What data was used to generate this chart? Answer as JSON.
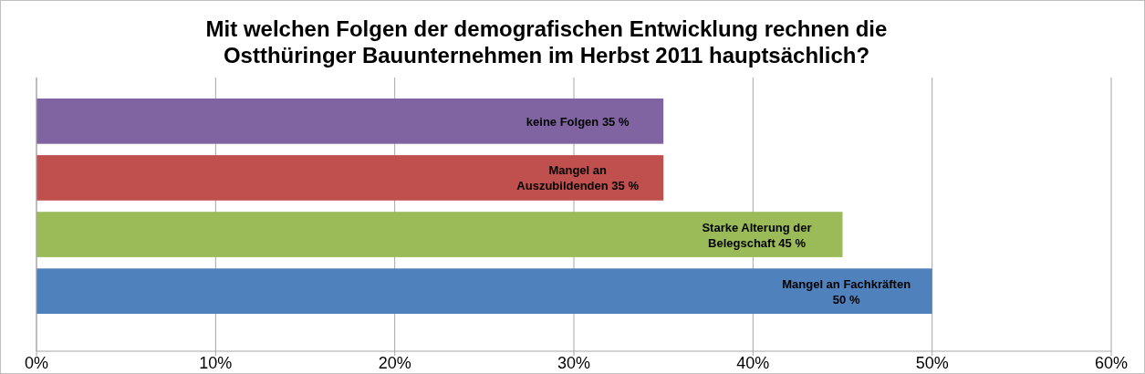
{
  "chart_data": {
    "type": "bar",
    "orientation": "horizontal",
    "title": "Mit welchen Folgen der demografischen Entwicklung rechnen die Ostthüringer Bauunternehmen im Herbst 2011 hauptsächlich?",
    "categories": [
      "keine Folgen",
      "Mangel an Auszubildenden",
      "Starke Alterung der Belegschaft",
      "Mangel an Fachkräften"
    ],
    "values": [
      35,
      35,
      45,
      50
    ],
    "colors": [
      "#8064a2",
      "#c0504d",
      "#9bbb59",
      "#4f81bd"
    ],
    "value_labels": [
      "35 %",
      "35 %",
      "45 %",
      "50 %"
    ],
    "xlim": [
      0,
      60
    ],
    "xticks": [
      {
        "value": 0,
        "label": "0%"
      },
      {
        "value": 10,
        "label": "10%"
      },
      {
        "value": 20,
        "label": "20%"
      },
      {
        "value": 30,
        "label": "30%"
      },
      {
        "value": 40,
        "label": "40%"
      },
      {
        "value": 50,
        "label": "50%"
      },
      {
        "value": 60,
        "label": "60%"
      }
    ],
    "grid": "x"
  }
}
